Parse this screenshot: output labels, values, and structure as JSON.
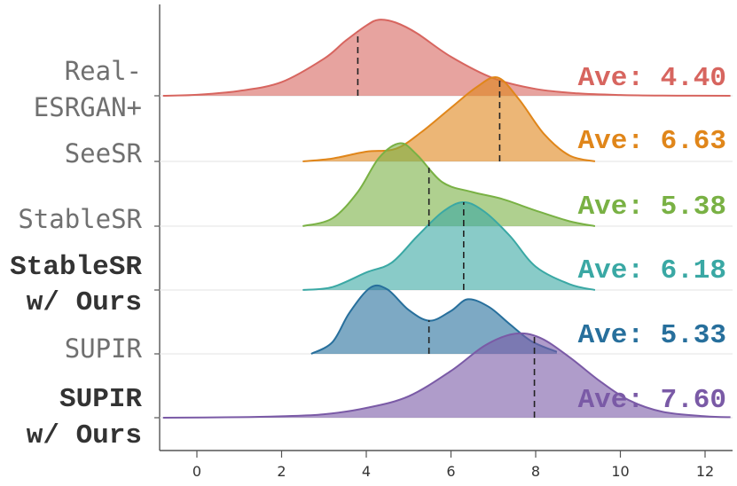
{
  "chart_data": {
    "type": "ridgeline",
    "xlabel": "",
    "ylabel": "",
    "xlim": [
      -0.8,
      12.6
    ],
    "xticks": [
      0,
      2,
      4,
      6,
      8,
      10,
      12
    ],
    "series": [
      {
        "name": "Real-ESRGAN+",
        "label_lines": [
          "Real-",
          "ESRGAN+"
        ],
        "bold": false,
        "ave_label": "Ave: 4.40",
        "mean_marker": 3.8,
        "color": "#d7655f",
        "density": [
          [
            -0.8,
            0
          ],
          [
            0,
            0.01
          ],
          [
            1,
            0.05
          ],
          [
            2,
            0.14
          ],
          [
            3,
            0.38
          ],
          [
            3.5,
            0.56
          ],
          [
            4,
            0.72
          ],
          [
            4.3,
            0.78
          ],
          [
            4.7,
            0.75
          ],
          [
            5.2,
            0.64
          ],
          [
            6,
            0.4
          ],
          [
            7,
            0.18
          ],
          [
            8,
            0.07
          ],
          [
            9,
            0.025
          ],
          [
            10,
            0.008
          ],
          [
            11,
            0.002
          ],
          [
            12.6,
            0
          ]
        ]
      },
      {
        "name": "SeeSR",
        "label_lines": [
          "SeeSR"
        ],
        "bold": false,
        "ave_label": "Ave: 6.63",
        "mean_marker": 7.15,
        "color": "#e0861a",
        "density": [
          [
            2.5,
            0
          ],
          [
            3.2,
            0.03
          ],
          [
            4,
            0.1
          ],
          [
            4.7,
            0.13
          ],
          [
            5.3,
            0.3
          ],
          [
            6,
            0.55
          ],
          [
            6.6,
            0.76
          ],
          [
            7.1,
            0.86
          ],
          [
            7.6,
            0.64
          ],
          [
            8.2,
            0.28
          ],
          [
            8.8,
            0.06
          ],
          [
            9.4,
            0
          ]
        ]
      },
      {
        "name": "StableSR",
        "label_lines": [
          "StableSR"
        ],
        "bold": false,
        "ave_label": "Ave: 5.38",
        "mean_marker": 5.48,
        "color": "#79b144",
        "density": [
          [
            2.5,
            0
          ],
          [
            3.2,
            0.08
          ],
          [
            3.8,
            0.35
          ],
          [
            4.3,
            0.7
          ],
          [
            4.8,
            0.85
          ],
          [
            5.2,
            0.73
          ],
          [
            5.8,
            0.45
          ],
          [
            6.5,
            0.35
          ],
          [
            7.2,
            0.28
          ],
          [
            8,
            0.16
          ],
          [
            8.8,
            0.05
          ],
          [
            9.4,
            0
          ]
        ]
      },
      {
        "name": "StableSR w/ Ours",
        "label_lines": [
          "StableSR",
          "w/ Ours"
        ],
        "bold": true,
        "ave_label": "Ave: 6.18",
        "mean_marker": 6.3,
        "color": "#3aa8a4",
        "density": [
          [
            2.5,
            0
          ],
          [
            3.2,
            0.03
          ],
          [
            4,
            0.18
          ],
          [
            4.6,
            0.28
          ],
          [
            5.2,
            0.55
          ],
          [
            5.8,
            0.8
          ],
          [
            6.3,
            0.9
          ],
          [
            6.8,
            0.8
          ],
          [
            7.4,
            0.55
          ],
          [
            8,
            0.24
          ],
          [
            8.8,
            0.06
          ],
          [
            9.4,
            0
          ]
        ]
      },
      {
        "name": "SUPIR",
        "label_lines": [
          "SUPIR"
        ],
        "bold": false,
        "ave_label": "Ave: 5.33",
        "mean_marker": 5.48,
        "color": "#276f9c",
        "density": [
          [
            2.7,
            0
          ],
          [
            3.2,
            0.12
          ],
          [
            3.6,
            0.42
          ],
          [
            4.1,
            0.68
          ],
          [
            4.5,
            0.66
          ],
          [
            5,
            0.45
          ],
          [
            5.5,
            0.34
          ],
          [
            6,
            0.44
          ],
          [
            6.4,
            0.56
          ],
          [
            6.9,
            0.48
          ],
          [
            7.4,
            0.3
          ],
          [
            7.9,
            0.13
          ],
          [
            8.5,
            0.02
          ]
        ]
      },
      {
        "name": "SUPIR w/ Ours",
        "label_lines": [
          "SUPIR",
          "w/ Ours"
        ],
        "bold": true,
        "ave_label": "Ave: 7.60",
        "mean_marker": 7.97,
        "color": "#7a5aa6",
        "density": [
          [
            -0.8,
            0
          ],
          [
            1,
            0.005
          ],
          [
            2,
            0.015
          ],
          [
            3,
            0.035
          ],
          [
            4,
            0.1
          ],
          [
            5,
            0.22
          ],
          [
            6,
            0.48
          ],
          [
            6.8,
            0.74
          ],
          [
            7.5,
            0.86
          ],
          [
            8.1,
            0.82
          ],
          [
            8.8,
            0.62
          ],
          [
            9.5,
            0.38
          ],
          [
            10.2,
            0.18
          ],
          [
            11,
            0.06
          ],
          [
            12,
            0.015
          ],
          [
            12.6,
            0.005
          ]
        ]
      }
    ]
  }
}
